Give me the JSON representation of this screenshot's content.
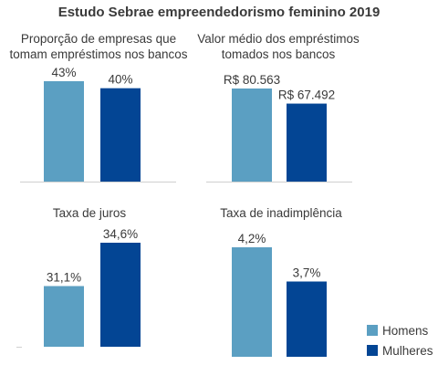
{
  "title": "Estudo Sebrae empreendedorismo feminino 2019",
  "legend": [
    {
      "label": "Homens",
      "color": "#5b9fc2"
    },
    {
      "label": "Mulheres",
      "color": "#034594"
    }
  ],
  "chart_data": [
    {
      "type": "bar",
      "title_lines": [
        "Proporção de empresas que",
        "tomam empréstimos nos bancos"
      ],
      "categories": [
        "Homens",
        "Mulheres"
      ],
      "values": [
        43,
        40
      ],
      "labels": [
        "43%",
        "40%"
      ],
      "ylim": [
        0,
        43
      ]
    },
    {
      "type": "bar",
      "title_lines": [
        "Valor médio dos empréstimos",
        "tomados nos bancos"
      ],
      "categories": [
        "Homens",
        "Mulheres"
      ],
      "values": [
        80563,
        67492
      ],
      "labels": [
        "R$ 80.563",
        "R$ 67.492"
      ],
      "ylim": [
        0,
        80563
      ]
    },
    {
      "type": "bar",
      "title_lines": [
        "Taxa de juros"
      ],
      "categories": [
        "Homens",
        "Mulheres"
      ],
      "values": [
        31.1,
        34.6
      ],
      "labels": [
        "31,1%",
        "34,6%"
      ],
      "ylim": [
        26.2,
        34.6
      ]
    },
    {
      "type": "bar",
      "title_lines": [
        "Taxa de inadimplência"
      ],
      "categories": [
        "Homens",
        "Mulheres"
      ],
      "values": [
        4.2,
        3.7
      ],
      "labels": [
        "4,2%",
        "3,7%"
      ],
      "ylim": [
        2.6,
        4.2
      ]
    }
  ]
}
